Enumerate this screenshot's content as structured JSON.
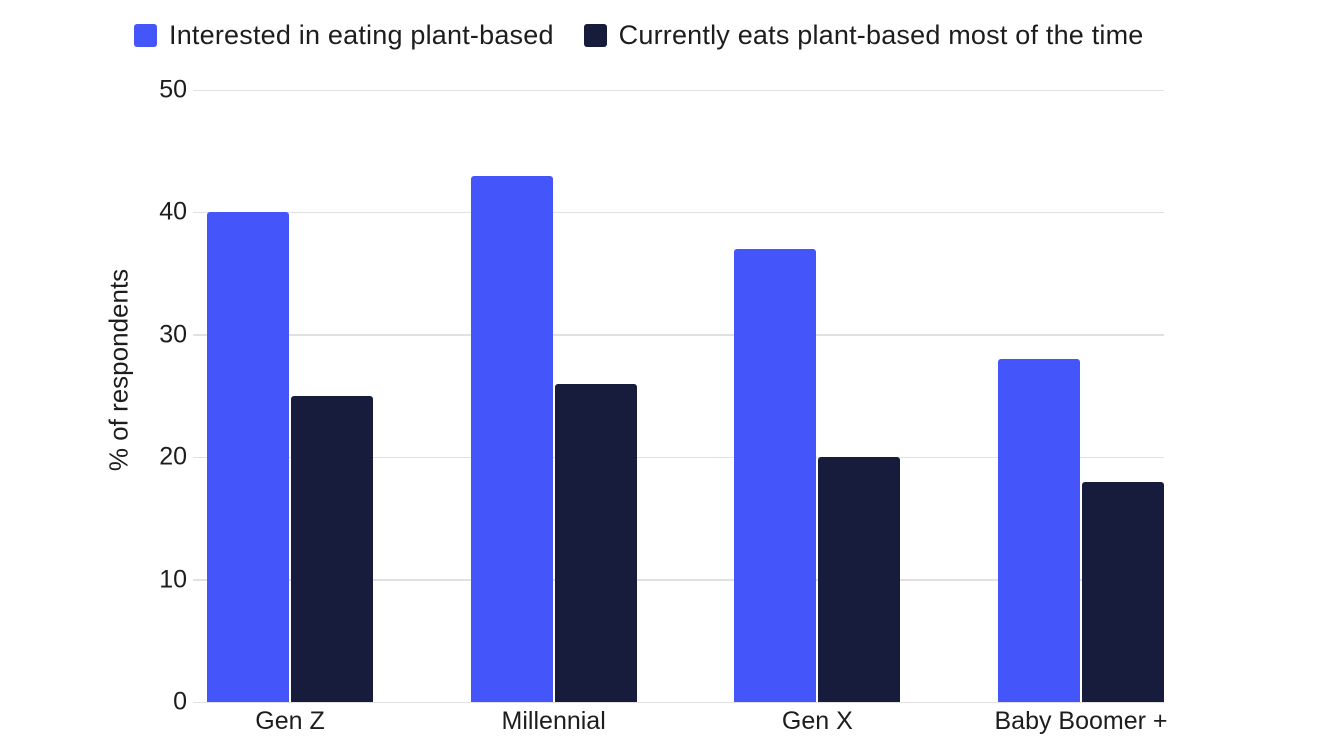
{
  "chart_data": {
    "type": "bar",
    "title": "",
    "categories": [
      "Gen Z",
      "Millennial",
      "Gen X",
      "Baby Boomer +"
    ],
    "series": [
      {
        "name": "Interested in eating plant-based",
        "color": "#4455FA",
        "values": [
          40,
          43,
          37,
          28
        ]
      },
      {
        "name": "Currently eats plant-based most of the time",
        "color": "#171B3C",
        "values": [
          25,
          26,
          20,
          18
        ]
      }
    ],
    "xlabel": "",
    "ylabel": "% of respondents",
    "ylim": [
      0,
      50
    ],
    "yticks": [
      0,
      10,
      20,
      30,
      40,
      50
    ],
    "grid": true,
    "legend_position": "top"
  },
  "colors": {
    "background": "#FFFFFF",
    "gridline": "#E1E1E1",
    "text": "#1D1D1D"
  }
}
